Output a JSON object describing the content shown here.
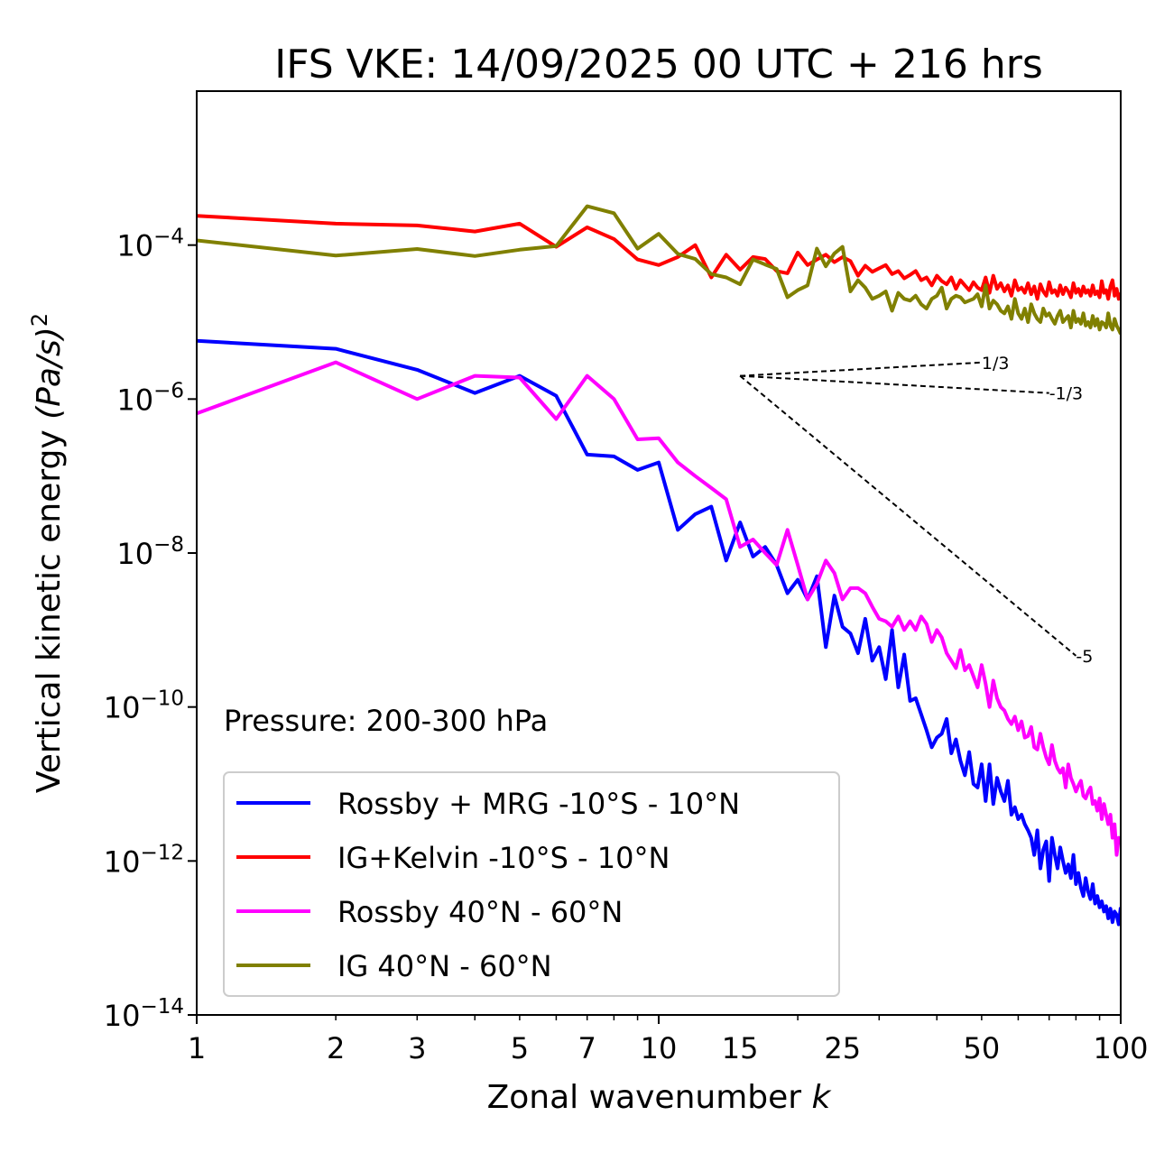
{
  "chart_data": {
    "type": "line",
    "title": "IFS VKE: 14/09/2025 00 UTC + 216 hrs",
    "xlabel": "Zonal wavenumber",
    "xlabel_var": "k",
    "ylabel": "Vertical kinetic energy",
    "ylabel_unit": "(Pa/s)",
    "ylabel_exp": "2",
    "xscale": "log",
    "yscale": "log",
    "xlim": [
      1,
      100
    ],
    "ylim": [
      1e-14,
      0.01
    ],
    "xticks": [
      1,
      2,
      3,
      5,
      7,
      10,
      15,
      25,
      50,
      100
    ],
    "xtick_labels": [
      "1",
      "2",
      "3",
      "5",
      "7",
      "10",
      "15",
      "25",
      "50",
      "100"
    ],
    "yticks": [
      {
        "base": "10",
        "exp": "−4",
        "value": 0.0001
      },
      {
        "base": "10",
        "exp": "−6",
        "value": 1e-06
      },
      {
        "base": "10",
        "exp": "−8",
        "value": 1e-08
      },
      {
        "base": "10",
        "exp": "−10",
        "value": 1e-10
      },
      {
        "base": "10",
        "exp": "−12",
        "value": 1e-12
      },
      {
        "base": "10",
        "exp": "−14",
        "value": 1e-14
      }
    ],
    "annotation": "Pressure: 200-300 hPa",
    "legend_position": "lower-left",
    "reference_slopes": [
      {
        "label": "1/3",
        "slope": 0.3333,
        "x0": 15,
        "y0": 2e-06,
        "x1": 50
      },
      {
        "label": "-1/3",
        "slope": -0.3333,
        "x0": 15,
        "y0": 2e-06,
        "x1": 70
      },
      {
        "label": "-5",
        "slope": -5,
        "x0": 15,
        "y0": 2e-06,
        "x1": 80
      }
    ],
    "series": [
      {
        "name": "Rossby + MRG -10°S - 10°N",
        "color": "#0000ff",
        "x": [
          1,
          2,
          3,
          4,
          5,
          6,
          7,
          8,
          9,
          10,
          11,
          12,
          13,
          14,
          15,
          16,
          17,
          18,
          19,
          20,
          21,
          22,
          23,
          24,
          25,
          26,
          27,
          28,
          29,
          30,
          31,
          32,
          33,
          34,
          35,
          36,
          37,
          38,
          39,
          40,
          41,
          42,
          43,
          44,
          45,
          46,
          47,
          48,
          49,
          50,
          51,
          52,
          53,
          54,
          55,
          56,
          57,
          58,
          59,
          60,
          61,
          62,
          63,
          64,
          65,
          66,
          67,
          68,
          69,
          70,
          71,
          72,
          73,
          74,
          75,
          76,
          77,
          78,
          79,
          80,
          81,
          82,
          83,
          84,
          85,
          86,
          87,
          88,
          89,
          90,
          91,
          92,
          93,
          94,
          95,
          96,
          97,
          98,
          99,
          100
        ],
        "y": [
          5.7e-06,
          4.5e-06,
          2.4e-06,
          1.2e-06,
          2e-06,
          1.1e-06,
          1.9e-07,
          1.8e-07,
          1.2e-07,
          1.5e-07,
          2e-08,
          3.2e-08,
          4e-08,
          8e-09,
          2.5e-08,
          9e-09,
          1.2e-08,
          7e-09,
          3e-09,
          4.5e-09,
          2.5e-09,
          5e-09,
          6e-10,
          2.8e-09,
          1.1e-09,
          9e-10,
          5e-10,
          1.4e-09,
          4e-10,
          6e-10,
          2.3e-10,
          1e-09,
          1.8e-10,
          4.8e-10,
          1.2e-10,
          1.3e-10,
          8e-11,
          5e-11,
          3e-11,
          4e-11,
          4.5e-11,
          7e-11,
          2.5e-11,
          3.8e-11,
          2e-11,
          1.3e-11,
          2.6e-11,
          1e-11,
          9e-12,
          1.8e-11,
          6e-12,
          1.8e-11,
          5.5e-12,
          1.2e-11,
          8e-12,
          6e-12,
          1.1e-11,
          4e-12,
          5e-12,
          3.5e-12,
          4e-12,
          3e-12,
          2.5e-12,
          2e-12,
          1.2e-12,
          2.5e-12,
          8e-13,
          1.4e-12,
          1.8e-12,
          5.5e-13,
          2e-12,
          1.2e-12,
          8e-13,
          1.5e-12,
          1e-12,
          7e-13,
          9e-13,
          6e-13,
          1.2e-12,
          5e-13,
          7e-13,
          4.5e-13,
          3.5e-13,
          6e-13,
          4e-13,
          3.2e-13,
          5e-13,
          2.8e-13,
          3.5e-13,
          2.5e-13,
          3e-13,
          2.2e-13,
          2.6e-13,
          1.8e-13,
          2.4e-13,
          1.6e-13,
          2.2e-13,
          2e-13,
          1.5e-13,
          2.5e-13
        ]
      },
      {
        "name": "IG+Kelvin -10°S - 10°N",
        "color": "#ff0000",
        "x": [
          1,
          2,
          3,
          4,
          5,
          6,
          7,
          8,
          9,
          10,
          11,
          12,
          13,
          14,
          15,
          16,
          17,
          18,
          19,
          20,
          21,
          22,
          23,
          24,
          25,
          26,
          27,
          28,
          29,
          30,
          31,
          32,
          33,
          34,
          35,
          36,
          37,
          38,
          39,
          40,
          41,
          42,
          43,
          44,
          45,
          46,
          47,
          48,
          49,
          50,
          51,
          52,
          53,
          54,
          55,
          56,
          57,
          58,
          59,
          60,
          61,
          62,
          63,
          64,
          65,
          66,
          67,
          68,
          69,
          70,
          71,
          72,
          73,
          74,
          75,
          76,
          77,
          78,
          79,
          80,
          81,
          82,
          83,
          84,
          85,
          86,
          87,
          88,
          89,
          90,
          91,
          92,
          93,
          94,
          95,
          96,
          97,
          98,
          99,
          100
        ],
        "y": [
          0.00024,
          0.00019,
          0.00018,
          0.00015,
          0.00019,
          9.5e-05,
          0.00017,
          0.00012,
          6.5e-05,
          5.5e-05,
          7e-05,
          0.0001,
          3.8e-05,
          7.5e-05,
          4.8e-05,
          7e-05,
          6.6e-05,
          4.6e-05,
          4.3e-05,
          8e-05,
          5.5e-05,
          6.5e-05,
          7.5e-05,
          6e-05,
          7e-05,
          6.2e-05,
          4e-05,
          5.4e-05,
          4.5e-05,
          5e-05,
          5.5e-05,
          4.2e-05,
          4.6e-05,
          3.7e-05,
          4.1e-05,
          4.6e-05,
          3.5e-05,
          3.8e-05,
          3e-05,
          4e-05,
          3.4e-05,
          3.1e-05,
          3.8e-05,
          2.7e-05,
          3.5e-05,
          3e-05,
          2.6e-05,
          3.3e-05,
          2.8e-05,
          2.6e-05,
          3.8e-05,
          2.4e-05,
          4e-05,
          2.7e-05,
          3.2e-05,
          2.5e-05,
          3e-05,
          2.2e-05,
          3.5e-05,
          2.6e-05,
          2.8e-05,
          2.4e-05,
          3.2e-05,
          2.3e-05,
          2.9e-05,
          2e-05,
          3.1e-05,
          2.5e-05,
          2.2e-05,
          3.3e-05,
          2.4e-05,
          2.6e-05,
          2.2e-05,
          3e-05,
          2.3e-05,
          2.8e-05,
          2.5e-05,
          2.1e-05,
          3.2e-05,
          2.4e-05,
          2.7e-05,
          2.2e-05,
          2.9e-05,
          2.4e-05,
          2.6e-05,
          2.2e-05,
          3e-05,
          2.3e-05,
          2.5e-05,
          2.1e-05,
          3.4e-05,
          2.4e-05,
          2.6e-05,
          2e-05,
          2.9e-05,
          3.5e-05,
          2.2e-05,
          2.7e-05,
          2e-05,
          2.4e-05
        ]
      },
      {
        "name": "Rossby 40°N - 60°N",
        "color": "#ff00ff",
        "x": [
          1,
          2,
          3,
          4,
          5,
          6,
          7,
          8,
          9,
          10,
          11,
          12,
          13,
          14,
          15,
          16,
          17,
          18,
          19,
          20,
          21,
          22,
          23,
          24,
          25,
          26,
          27,
          28,
          29,
          30,
          31,
          32,
          33,
          34,
          35,
          36,
          37,
          38,
          39,
          40,
          41,
          42,
          43,
          44,
          45,
          46,
          47,
          48,
          49,
          50,
          51,
          52,
          53,
          54,
          55,
          56,
          57,
          58,
          59,
          60,
          61,
          62,
          63,
          64,
          65,
          66,
          67,
          68,
          69,
          70,
          71,
          72,
          73,
          74,
          75,
          76,
          77,
          78,
          79,
          80,
          81,
          82,
          83,
          84,
          85,
          86,
          87,
          88,
          89,
          90,
          91,
          92,
          93,
          94,
          95,
          96,
          97,
          98,
          99,
          100
        ],
        "y": [
          6.5e-07,
          3e-06,
          1e-06,
          2e-06,
          1.9e-06,
          5.5e-07,
          2e-06,
          1e-06,
          3e-07,
          3.1e-07,
          1.5e-07,
          1e-07,
          7e-08,
          5e-08,
          1.2e-08,
          1.5e-08,
          1e-08,
          7e-09,
          2e-08,
          7e-09,
          2.5e-09,
          4e-09,
          8e-09,
          5.5e-09,
          2.5e-09,
          3.5e-09,
          3.5e-09,
          3e-09,
          2e-09,
          1.4e-09,
          1.3e-09,
          1.1e-09,
          1.5e-09,
          1e-09,
          1.3e-09,
          1e-09,
          1.5e-09,
          1.2e-09,
          7e-10,
          1e-09,
          8e-10,
          5e-10,
          4e-10,
          3.2e-10,
          5.5e-10,
          3e-10,
          3.5e-10,
          2.5e-10,
          1.8e-10,
          3.5e-10,
          2e-10,
          1e-10,
          2.2e-10,
          1.3e-10,
          1e-10,
          9e-11,
          7e-11,
          6e-11,
          7.5e-11,
          5e-11,
          6.5e-11,
          4e-11,
          4.2e-11,
          5.5e-11,
          3e-11,
          2.8e-11,
          4.5e-11,
          3e-11,
          2.2e-11,
          1.8e-11,
          3.2e-11,
          2e-11,
          1.6e-11,
          1.4e-11,
          1.6e-11,
          9e-12,
          1.8e-11,
          1.2e-11,
          1e-11,
          8e-12,
          9.5e-12,
          1.1e-11,
          7e-12,
          6.5e-12,
          8e-12,
          9e-12,
          5.5e-12,
          6e-12,
          4.5e-12,
          6.5e-12,
          3.5e-12,
          5.5e-12,
          4e-12,
          3e-12,
          4e-12,
          2e-12,
          3e-12,
          1.2e-12,
          2e-12,
          1.7e-12
        ]
      },
      {
        "name": "IG 40°N - 60°N",
        "color": "#808000",
        "x": [
          1,
          2,
          3,
          4,
          5,
          6,
          7,
          8,
          9,
          10,
          11,
          12,
          13,
          14,
          15,
          16,
          17,
          18,
          19,
          20,
          21,
          22,
          23,
          24,
          25,
          26,
          27,
          28,
          29,
          30,
          31,
          32,
          33,
          34,
          35,
          36,
          37,
          38,
          39,
          40,
          41,
          42,
          43,
          44,
          45,
          46,
          47,
          48,
          49,
          50,
          51,
          52,
          53,
          54,
          55,
          56,
          57,
          58,
          59,
          60,
          61,
          62,
          63,
          64,
          65,
          66,
          67,
          68,
          69,
          70,
          71,
          72,
          73,
          74,
          75,
          76,
          77,
          78,
          79,
          80,
          81,
          82,
          83,
          84,
          85,
          86,
          87,
          88,
          89,
          90,
          91,
          92,
          93,
          94,
          95,
          96,
          97,
          98,
          99,
          100
        ],
        "y": [
          0.000115,
          7.3e-05,
          8.9e-05,
          7.2e-05,
          8.7e-05,
          9.7e-05,
          0.00032,
          0.00026,
          9e-05,
          0.00014,
          7.7e-05,
          6.6e-05,
          4.2e-05,
          3.8e-05,
          3.1e-05,
          6.5e-05,
          5.6e-05,
          4.9e-05,
          2.1e-05,
          2.6e-05,
          3e-05,
          9e-05,
          5.3e-05,
          7.8e-05,
          9.5e-05,
          2.5e-05,
          3.5e-05,
          2.8e-05,
          2e-05,
          2.2e-05,
          2.5e-05,
          1.4e-05,
          2.4e-05,
          2e-05,
          1.9e-05,
          2.2e-05,
          1.7e-05,
          1.5e-05,
          2e-05,
          2.2e-05,
          2.8e-05,
          1.5e-05,
          2e-05,
          2.2e-05,
          2.1e-05,
          1.8e-05,
          1.9e-05,
          2e-05,
          2.3e-05,
          1.6e-05,
          3e-05,
          1.5e-05,
          1.9e-05,
          1.7e-05,
          1.4e-05,
          1.3e-05,
          1.6e-05,
          1.1e-05,
          2e-05,
          1.3e-05,
          1.1e-05,
          1.5e-05,
          1e-05,
          1.7e-05,
          1.3e-05,
          1.1e-05,
          1e-05,
          1.5e-05,
          1.2e-05,
          1.3e-05,
          1.1e-05,
          9.5e-06,
          1.2e-05,
          1.4e-05,
          1e-05,
          1.1e-05,
          1.2e-05,
          8.5e-06,
          1.4e-05,
          1e-05,
          1.1e-05,
          9.5e-06,
          1.3e-05,
          9e-06,
          1e-05,
          8.5e-06,
          1.2e-05,
          9e-06,
          1.1e-05,
          8e-06,
          1e-05,
          9.5e-06,
          8.5e-06,
          1.3e-05,
          9e-06,
          8e-06,
          1.1e-05,
          9e-06,
          8e-06,
          7e-06
        ]
      }
    ]
  }
}
